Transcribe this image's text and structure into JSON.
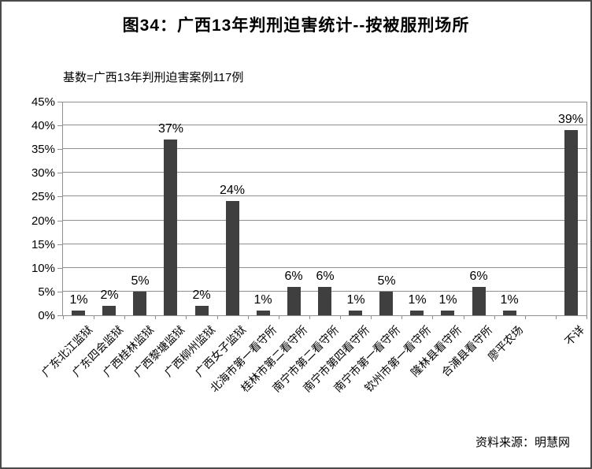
{
  "source_note": "资料来源：明慧网",
  "chart_data": {
    "type": "bar",
    "title": "图34：广西13年判刑迫害统计--按被服刑场所",
    "subtitle": "基数=广西13年判刑迫害案例117例",
    "categories": [
      "广东北江监狱",
      "广东四会监狱",
      "广西桂林监狱",
      "广西黎塘监狱",
      "广西柳州监狱",
      "广西女子监狱",
      "北海市第一看守所",
      "桂林市第二看守所",
      "南宁市第二看守所",
      "南宁市第四看守所",
      "南宁市第一看守所",
      "钦州市第一看守所",
      "隆林县看守所",
      "合浦县看守所",
      "廖平农场",
      "",
      "不详"
    ],
    "values": [
      1,
      2,
      5,
      37,
      2,
      24,
      1,
      6,
      6,
      1,
      5,
      1,
      1,
      6,
      1,
      0,
      39
    ],
    "data_labels": [
      "1%",
      "2%",
      "5%",
      "37%",
      "2%",
      "24%",
      "1%",
      "6%",
      "6%",
      "1%",
      "5%",
      "1%",
      "1%",
      "6%",
      "1%",
      "",
      "39%"
    ],
    "xlabel": "",
    "ylabel": "",
    "ylim": [
      0,
      45
    ],
    "ytick_step": 5,
    "ytick_labels": [
      "0%",
      "5%",
      "10%",
      "15%",
      "20%",
      "25%",
      "30%",
      "35%",
      "40%",
      "45%"
    ],
    "grid": true,
    "legend": "none",
    "bar_color": "#3f3f3f",
    "axis_color": "#8f8f8f"
  }
}
